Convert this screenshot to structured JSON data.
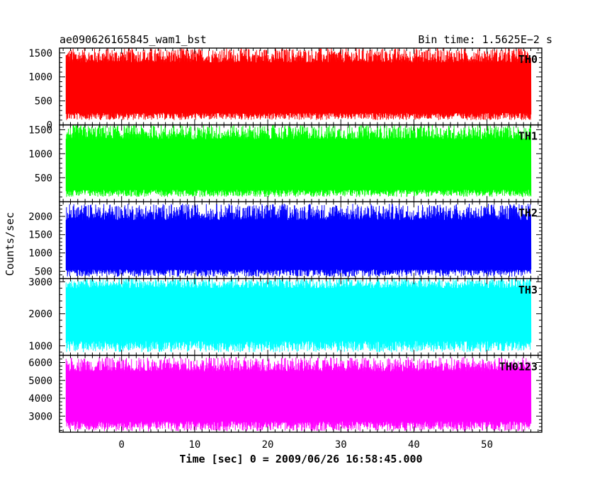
{
  "header": {
    "left_title": "ae090626165845_wam1_bst",
    "right_title": "Bin time: 1.5625E−2 s"
  },
  "chart_data": {
    "type": "line",
    "title": "ae090626165845_wam1_bst",
    "bin_time_label": "Bin time: 1.5625E−2 s",
    "xlabel": "Time [sec] 0 = 2009/06/26 16:58:45.000",
    "ylabel": "Counts/sec",
    "xlim": [
      -8.5,
      57.5
    ],
    "x_ticks": [
      0,
      10,
      20,
      30,
      40,
      50
    ],
    "data_range": [
      -7.6,
      56.0
    ],
    "panels": [
      {
        "name": "TH0",
        "color": "#ff0000",
        "ylim": [
          0,
          1600
        ],
        "y_ticks": [
          0,
          500,
          1000,
          1500
        ],
        "baseline": 750,
        "fill_band": [
          250,
          1300
        ],
        "noise_range": [
          100,
          1600
        ]
      },
      {
        "name": "TH1",
        "color": "#00ff00",
        "ylim": [
          0,
          1600
        ],
        "y_ticks": [
          500,
          1000,
          1500
        ],
        "baseline": 750,
        "fill_band": [
          250,
          1300
        ],
        "noise_range": [
          100,
          1600
        ]
      },
      {
        "name": "TH2",
        "color": "#0000ff",
        "ylim": [
          300,
          2400
        ],
        "y_ticks": [
          500,
          1000,
          1500,
          2000
        ],
        "baseline": 1200,
        "fill_band": [
          550,
          1900
        ],
        "noise_range": [
          350,
          2350
        ]
      },
      {
        "name": "TH3",
        "color": "#00ffff",
        "ylim": [
          700,
          3100
        ],
        "y_ticks": [
          1000,
          2000,
          3000
        ],
        "baseline": 1900,
        "fill_band": [
          1150,
          2800
        ],
        "noise_range": [
          800,
          3100
        ]
      },
      {
        "name": "TH0123",
        "color": "#ff00ff",
        "ylim": [
          2100,
          6400
        ],
        "y_ticks": [
          3000,
          4000,
          5000,
          6000
        ],
        "baseline": 4200,
        "fill_band": [
          2700,
          5500
        ],
        "noise_range": [
          2150,
          6300
        ]
      }
    ]
  }
}
